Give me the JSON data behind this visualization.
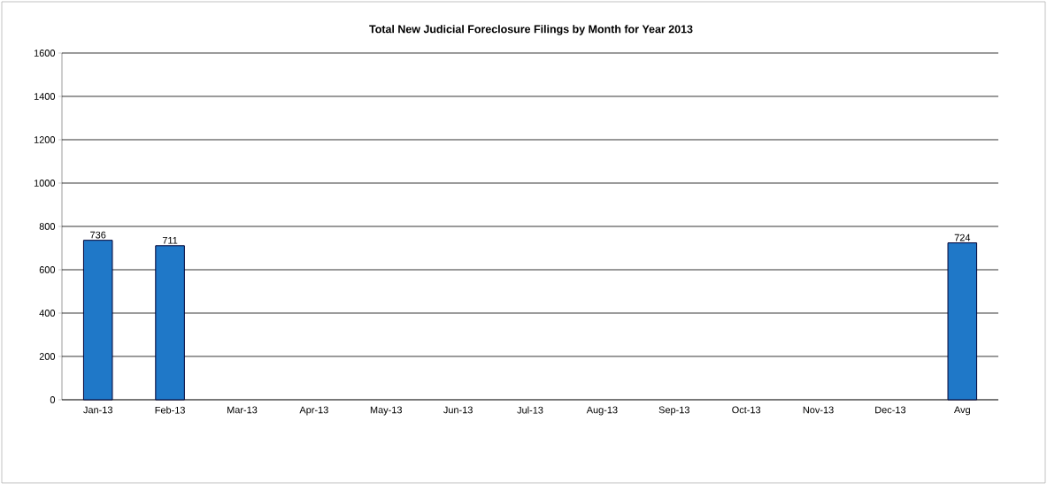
{
  "chart_data": {
    "type": "bar",
    "title": "Total New Judicial Foreclosure Filings by Month for Year 2013",
    "categories": [
      "Jan-13",
      "Feb-13",
      "Mar-13",
      "Apr-13",
      "May-13",
      "Jun-13",
      "Jul-13",
      "Aug-13",
      "Sep-13",
      "Oct-13",
      "Nov-13",
      "Dec-13",
      "Avg"
    ],
    "values": [
      736,
      711,
      null,
      null,
      null,
      null,
      null,
      null,
      null,
      null,
      null,
      null,
      724
    ],
    "color": "#1f78c8",
    "ylim": [
      0,
      1600
    ],
    "yticks": [
      0,
      200,
      400,
      600,
      800,
      1000,
      1200,
      1400,
      1600
    ],
    "grid": "y",
    "data_labels": true
  }
}
